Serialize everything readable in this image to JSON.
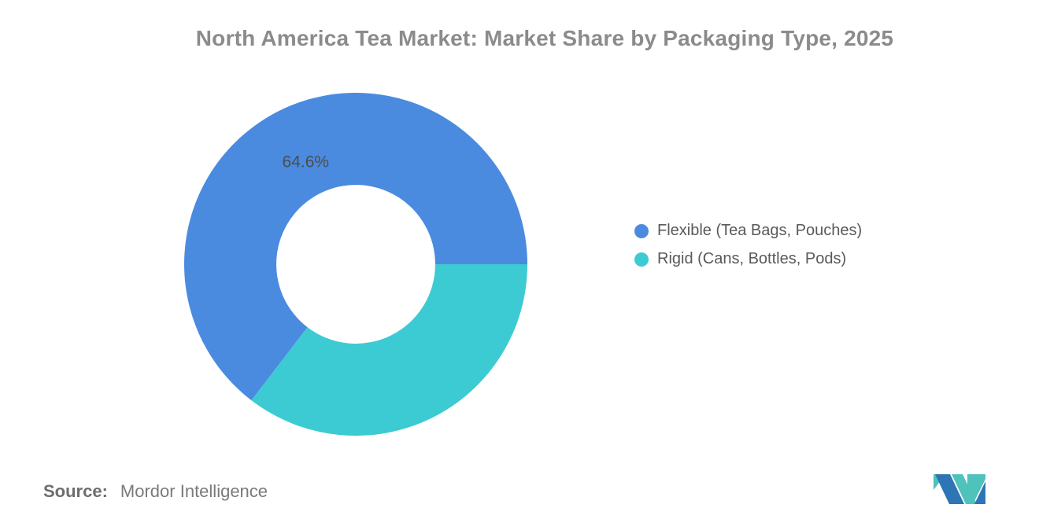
{
  "chart_data": {
    "type": "pie",
    "subtype": "donut",
    "title": "North America Tea Market: Market Share by Packaging Type, 2025",
    "slices": [
      {
        "name": "Flexible (Tea Bags, Pouches)",
        "value": 64.6,
        "label": "64.6%",
        "color": "#4A8BE0"
      },
      {
        "name": "Rigid (Cans, Bottles, Pods)",
        "value": 35.4,
        "label": "",
        "color": "#3CCBD2"
      }
    ],
    "total": 100,
    "legend_position": "right",
    "start_angle_deg": -142.56,
    "inner_radius_ratio": 0.463,
    "label_radius_ratio": 0.66,
    "label_color": "#4D4D4D",
    "grid": false
  },
  "source": {
    "label": "Source:",
    "value": "Mordor Intelligence"
  },
  "logo": {
    "alt": "Mordor Intelligence logo",
    "colors": {
      "teal": "#4FC2BC",
      "blue": "#2E75B6"
    }
  }
}
